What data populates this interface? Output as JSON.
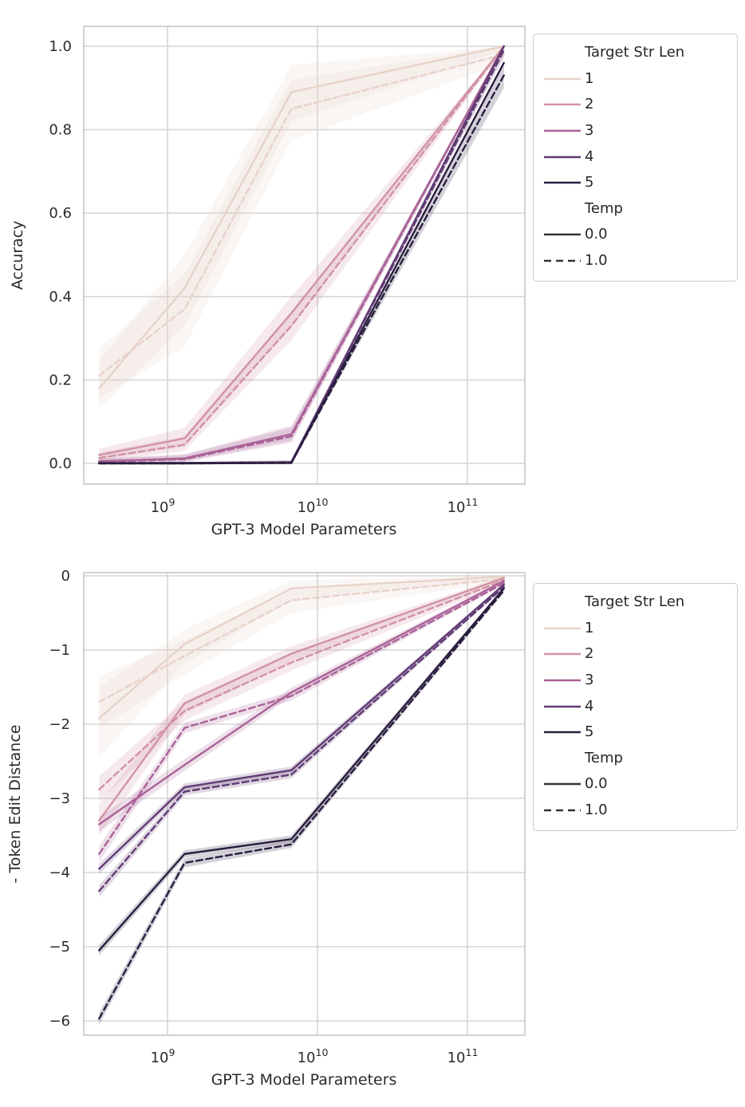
{
  "page": {
    "background": "#ffffff"
  },
  "palette": {
    "len1": "#e8d2c9",
    "len2": "#d193a4",
    "len3": "#aa6298",
    "len4": "#613b74",
    "len5": "#2a1e3f",
    "temp_line": "#333333",
    "grid": "#d6d6d6",
    "frame": "#cccccc",
    "text": "#2b2b2b"
  },
  "legend": {
    "title": "Target Str Len",
    "entries": [
      {
        "label": "1",
        "color_key": "len1"
      },
      {
        "label": "2",
        "color_key": "len2"
      },
      {
        "label": "3",
        "color_key": "len3"
      },
      {
        "label": "4",
        "color_key": "len4"
      },
      {
        "label": "5",
        "color_key": "len5"
      }
    ],
    "temp_title": "Temp",
    "temp_entries": [
      {
        "label": "0.0",
        "style": "solid"
      },
      {
        "label": "1.0",
        "style": "dashed"
      }
    ]
  },
  "chart_data": [
    {
      "type": "line",
      "title": "",
      "xlabel": "GPT-3 Model Parameters",
      "ylabel": "Accuracy",
      "xscale": "log",
      "grid": true,
      "legend_position": "outside-right-top",
      "x": [
        350000000.0,
        1300000000.0,
        6700000000.0,
        175000000000.0
      ],
      "xticks": [
        1000000000.0,
        10000000000.0,
        100000000000.0
      ],
      "xtick_labels": [
        {
          "base": "10",
          "exp": "9"
        },
        {
          "base": "10",
          "exp": "10"
        },
        {
          "base": "10",
          "exp": "11"
        }
      ],
      "yticks": [
        0.0,
        0.2,
        0.4,
        0.6,
        0.8,
        1.0
      ],
      "ytick_labels": [
        "0.0",
        "0.2",
        "0.4",
        "0.6",
        "0.8",
        "1.0"
      ],
      "xlim": [
        275000000.0,
        230000000000.0
      ],
      "ylim": [
        -0.05,
        1.045
      ],
      "series": [
        {
          "target_str_len": 1,
          "temp": "0.0",
          "style": "solid",
          "color_key": "len1",
          "values": [
            0.18,
            0.42,
            0.89,
            1.0
          ],
          "band_lower": [
            0.13,
            0.33,
            0.82,
            0.99
          ],
          "band_upper": [
            0.245,
            0.5,
            0.955,
            1.0
          ]
        },
        {
          "target_str_len": 1,
          "temp": "1.0",
          "style": "dashed",
          "color_key": "len1",
          "values": [
            0.21,
            0.37,
            0.85,
            0.98
          ],
          "band_lower": [
            0.155,
            0.28,
            0.775,
            0.96
          ],
          "band_upper": [
            0.275,
            0.455,
            0.92,
            1.0
          ]
        },
        {
          "target_str_len": 2,
          "temp": "0.0",
          "style": "solid",
          "color_key": "len2",
          "values": [
            0.02,
            0.06,
            0.36,
            1.0
          ],
          "band_lower": [
            0.008,
            0.04,
            0.325,
            0.995
          ],
          "band_upper": [
            0.035,
            0.085,
            0.4,
            1.0
          ]
        },
        {
          "target_str_len": 2,
          "temp": "1.0",
          "style": "dashed",
          "color_key": "len2",
          "values": [
            0.013,
            0.045,
            0.33,
            1.0
          ],
          "band_lower": [
            0.004,
            0.03,
            0.295,
            0.995
          ],
          "band_upper": [
            0.026,
            0.065,
            0.365,
            1.0
          ]
        },
        {
          "target_str_len": 3,
          "temp": "0.0",
          "style": "solid",
          "color_key": "len3",
          "values": [
            0.005,
            0.012,
            0.07,
            1.0
          ],
          "band_lower": [
            0.0,
            0.005,
            0.055,
            0.995
          ],
          "band_upper": [
            0.012,
            0.022,
            0.09,
            1.0
          ]
        },
        {
          "target_str_len": 3,
          "temp": "1.0",
          "style": "dashed",
          "color_key": "len3",
          "values": [
            0.004,
            0.01,
            0.065,
            1.0
          ],
          "band_lower": [
            0.0,
            0.003,
            0.05,
            0.995
          ],
          "band_upper": [
            0.01,
            0.02,
            0.085,
            1.0
          ]
        },
        {
          "target_str_len": 4,
          "temp": "0.0",
          "style": "solid",
          "color_key": "len4",
          "values": [
            0.001,
            0.001,
            0.003,
            1.0
          ],
          "band_lower": null,
          "band_upper": null
        },
        {
          "target_str_len": 4,
          "temp": "1.0",
          "style": "dashed",
          "color_key": "len4",
          "values": [
            0.001,
            0.001,
            0.003,
            0.99
          ],
          "band_lower": [
            0.0,
            0.0,
            0.0,
            0.975
          ],
          "band_upper": [
            0.003,
            0.003,
            0.008,
            1.0
          ]
        },
        {
          "target_str_len": 5,
          "temp": "0.0",
          "style": "solid",
          "color_key": "len5",
          "values": [
            0.0,
            0.0,
            0.001,
            0.96
          ],
          "band_lower": null,
          "band_upper": null
        },
        {
          "target_str_len": 5,
          "temp": "1.0",
          "style": "dashed",
          "color_key": "len5",
          "values": [
            0.0,
            0.0,
            0.001,
            0.93
          ],
          "band_lower": [
            0.0,
            0.0,
            0.0,
            0.9
          ],
          "band_upper": [
            0.002,
            0.002,
            0.004,
            0.955
          ]
        }
      ]
    },
    {
      "type": "line",
      "title": "",
      "xlabel": "GPT-3 Model Parameters",
      "ylabel": "- Token Edit Distance",
      "xscale": "log",
      "grid": true,
      "legend_position": "outside-right-top",
      "x": [
        350000000.0,
        1300000000.0,
        6700000000.0,
        175000000000.0
      ],
      "xticks": [
        1000000000.0,
        10000000000.0,
        100000000000.0
      ],
      "xtick_labels": [
        {
          "base": "10",
          "exp": "9"
        },
        {
          "base": "10",
          "exp": "10"
        },
        {
          "base": "10",
          "exp": "11"
        }
      ],
      "yticks": [
        0,
        -1,
        -2,
        -3,
        -4,
        -5,
        -6
      ],
      "ytick_labels": [
        "0",
        "−1",
        "−2",
        "−3",
        "−4",
        "−5",
        "−6"
      ],
      "xlim": [
        275000000.0,
        230000000000.0
      ],
      "ylim": [
        -6.19,
        0.04
      ],
      "series": [
        {
          "target_str_len": 1,
          "temp": "0.0",
          "style": "solid",
          "color_key": "len1",
          "values": [
            -1.92,
            -0.92,
            -0.17,
            -0.01
          ],
          "band_lower": [
            -2.45,
            -1.18,
            -0.33,
            -0.03
          ],
          "band_upper": [
            -1.5,
            -0.72,
            -0.06,
            0.0
          ]
        },
        {
          "target_str_len": 1,
          "temp": "1.0",
          "style": "dashed",
          "color_key": "len1",
          "values": [
            -1.7,
            -1.08,
            -0.33,
            -0.04
          ],
          "band_lower": [
            -2.05,
            -1.33,
            -0.5,
            -0.08
          ],
          "band_upper": [
            -1.35,
            -0.87,
            -0.2,
            -0.01
          ]
        },
        {
          "target_str_len": 2,
          "temp": "0.0",
          "style": "solid",
          "color_key": "len2",
          "values": [
            -3.3,
            -1.72,
            -1.05,
            -0.03
          ],
          "band_lower": [
            -3.5,
            -1.86,
            -1.16,
            -0.05
          ],
          "band_upper": [
            -3.08,
            -1.6,
            -0.95,
            -0.01
          ]
        },
        {
          "target_str_len": 2,
          "temp": "1.0",
          "style": "dashed",
          "color_key": "len2",
          "values": [
            -2.88,
            -1.82,
            -1.17,
            -0.06
          ],
          "band_lower": [
            -3.05,
            -1.95,
            -1.28,
            -0.1
          ],
          "band_upper": [
            -2.7,
            -1.69,
            -1.06,
            -0.03
          ]
        },
        {
          "target_str_len": 3,
          "temp": "0.0",
          "style": "solid",
          "color_key": "len3",
          "values": [
            -3.35,
            -2.55,
            -1.57,
            -0.07
          ],
          "band_lower": [
            -3.45,
            -2.63,
            -1.63,
            -0.09
          ],
          "band_upper": [
            -3.25,
            -2.47,
            -1.51,
            -0.05
          ]
        },
        {
          "target_str_len": 3,
          "temp": "1.0",
          "style": "dashed",
          "color_key": "len3",
          "values": [
            -3.75,
            -2.05,
            -1.62,
            -0.1
          ],
          "band_lower": [
            -3.86,
            -2.12,
            -1.68,
            -0.12
          ],
          "band_upper": [
            -3.64,
            -1.98,
            -1.56,
            -0.08
          ]
        },
        {
          "target_str_len": 4,
          "temp": "0.0",
          "style": "solid",
          "color_key": "len4",
          "values": [
            -3.95,
            -2.85,
            -2.62,
            -0.12
          ],
          "band_lower": [
            -4.02,
            -2.9,
            -2.67,
            -0.14
          ],
          "band_upper": [
            -3.88,
            -2.8,
            -2.57,
            -0.1
          ]
        },
        {
          "target_str_len": 4,
          "temp": "1.0",
          "style": "dashed",
          "color_key": "len4",
          "values": [
            -4.25,
            -2.91,
            -2.68,
            -0.15
          ],
          "band_lower": [
            -4.33,
            -2.96,
            -2.73,
            -0.17
          ],
          "band_upper": [
            -4.17,
            -2.86,
            -2.63,
            -0.13
          ]
        },
        {
          "target_str_len": 5,
          "temp": "0.0",
          "style": "solid",
          "color_key": "len5",
          "values": [
            -5.05,
            -3.75,
            -3.55,
            -0.17
          ],
          "band_lower": [
            -5.12,
            -3.8,
            -3.6,
            -0.19
          ],
          "band_upper": [
            -4.98,
            -3.7,
            -3.5,
            -0.15
          ]
        },
        {
          "target_str_len": 5,
          "temp": "1.0",
          "style": "dashed",
          "color_key": "len5",
          "values": [
            -5.97,
            -3.87,
            -3.62,
            -0.2
          ],
          "band_lower": [
            -6.05,
            -3.93,
            -3.67,
            -0.22
          ],
          "band_upper": [
            -5.89,
            -3.81,
            -3.57,
            -0.18
          ]
        }
      ]
    }
  ]
}
